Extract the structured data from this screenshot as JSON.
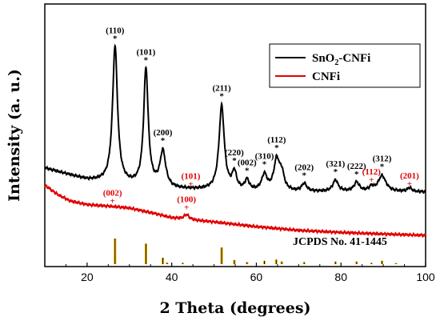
{
  "chart_data": {
    "type": "line",
    "xlabel": "2 Theta (degrees)",
    "ylabel": "Intensity (a. u.)",
    "xlim": [
      10,
      100
    ],
    "x_ticks": [
      20,
      40,
      60,
      80,
      100
    ],
    "y_ticks_shown": false,
    "legend_position": "top-right",
    "reference_label": "JCPDS No. 41-1445",
    "series": [
      {
        "name": "SnO2-CNFi",
        "name_base": "SnO",
        "name_sub": "2",
        "name_rest": "-CNFi",
        "color": "#000000",
        "baseline": [
          [
            10,
            37.5
          ],
          [
            20,
            33.0
          ],
          [
            30,
            31.0
          ],
          [
            40,
            29.5
          ],
          [
            50,
            29.0
          ],
          [
            60,
            28.6
          ],
          [
            70,
            28.4
          ],
          [
            80,
            28.5
          ],
          [
            90,
            28.5
          ],
          [
            100,
            28.4
          ]
        ],
        "peaks": [
          {
            "x": 26.6,
            "h": 52.0,
            "w": 0.7
          },
          {
            "x": 33.9,
            "h": 44.5,
            "w": 0.65
          },
          {
            "x": 37.9,
            "h": 13.5,
            "w": 0.8
          },
          {
            "x": 51.8,
            "h": 32.0,
            "w": 0.75
          },
          {
            "x": 54.8,
            "h": 6.5,
            "w": 0.6
          },
          {
            "x": 57.8,
            "h": 3.8,
            "w": 0.6
          },
          {
            "x": 61.9,
            "h": 6.0,
            "w": 0.75
          },
          {
            "x": 64.8,
            "h": 11.5,
            "w": 0.8
          },
          {
            "x": 66.0,
            "h": 6.0,
            "w": 0.7
          },
          {
            "x": 71.3,
            "h": 3.0,
            "w": 0.7
          },
          {
            "x": 78.7,
            "h": 4.3,
            "w": 0.75
          },
          {
            "x": 83.7,
            "h": 3.4,
            "w": 0.75
          },
          {
            "x": 87.2,
            "h": 1.5,
            "w": 0.6
          },
          {
            "x": 89.7,
            "h": 6.0,
            "w": 1.1
          },
          {
            "x": 96.2,
            "h": 1.5,
            "w": 0.6
          }
        ]
      },
      {
        "name": "CNFi",
        "color": "#e00000",
        "baseline": [
          [
            10,
            31.0
          ],
          [
            13,
            27.5
          ],
          [
            16,
            25.0
          ],
          [
            20,
            23.6
          ],
          [
            26,
            22.9
          ],
          [
            30,
            22.3
          ],
          [
            36,
            20.2
          ],
          [
            40,
            18.6
          ],
          [
            46,
            17.6
          ],
          [
            50,
            17.0
          ],
          [
            60,
            15.2
          ],
          [
            70,
            13.8
          ],
          [
            80,
            13.0
          ],
          [
            90,
            12.4
          ],
          [
            100,
            11.9
          ]
        ],
        "peaks": [
          {
            "x": 43.5,
            "h": 1.8,
            "w": 0.7
          }
        ]
      }
    ],
    "annotations_black": [
      {
        "label": "(110)",
        "x": 26.6
      },
      {
        "label": "(101)",
        "x": 33.9
      },
      {
        "label": "(200)",
        "x": 37.9
      },
      {
        "label": "(211)",
        "x": 51.8
      },
      {
        "label": "(220)",
        "x": 54.8
      },
      {
        "label": "(002)",
        "x": 57.8
      },
      {
        "label": "(310)",
        "x": 61.9
      },
      {
        "label": "(112)",
        "x": 64.8
      },
      {
        "label": "(202)",
        "x": 71.3
      },
      {
        "label": "(321)",
        "x": 78.7
      },
      {
        "label": "(222)",
        "x": 83.7
      },
      {
        "label": "(312)",
        "x": 89.7
      }
    ],
    "annotations_red": [
      {
        "label": "(002)",
        "x": 26.0
      },
      {
        "label": "(101)",
        "x": 44.5
      },
      {
        "label": "(100)",
        "x": 43.5
      },
      {
        "label": "(112)",
        "x": 87.2
      },
      {
        "label": "(201)",
        "x": 96.2
      }
    ],
    "reference_peaks": [
      {
        "x": 26.6,
        "h": 1.0
      },
      {
        "x": 33.9,
        "h": 0.8
      },
      {
        "x": 37.9,
        "h": 0.25
      },
      {
        "x": 38.9,
        "h": 0.06
      },
      {
        "x": 42.6,
        "h": 0.05
      },
      {
        "x": 51.8,
        "h": 0.65
      },
      {
        "x": 54.8,
        "h": 0.16
      },
      {
        "x": 57.8,
        "h": 0.08
      },
      {
        "x": 61.9,
        "h": 0.13
      },
      {
        "x": 64.7,
        "h": 0.18
      },
      {
        "x": 66.0,
        "h": 0.1
      },
      {
        "x": 71.3,
        "h": 0.08
      },
      {
        "x": 78.7,
        "h": 0.1
      },
      {
        "x": 83.7,
        "h": 0.1
      },
      {
        "x": 87.2,
        "h": 0.05
      },
      {
        "x": 89.7,
        "h": 0.13
      },
      {
        "x": 93.0,
        "h": 0.04
      }
    ],
    "reference_colors": {
      "fill": "#f5b400",
      "stem": "#111111"
    }
  }
}
